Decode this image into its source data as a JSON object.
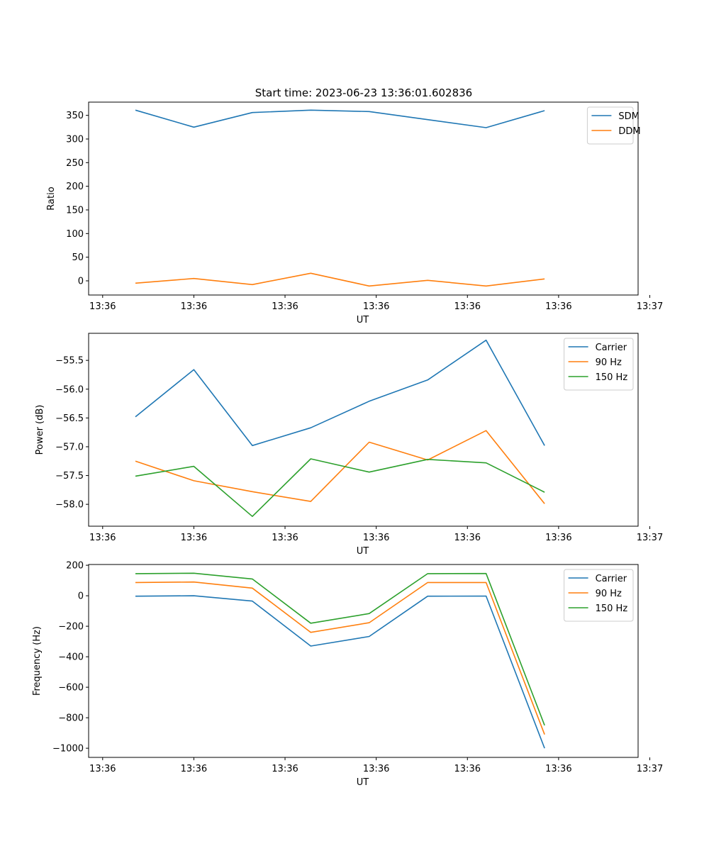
{
  "colors": {
    "blue": "#1f77b4",
    "orange": "#ff7f0e",
    "green": "#2ca02c"
  },
  "figure_title": "Start time: 2023-06-23 13:36:01.602836",
  "x_tick_labels": [
    "13:36",
    "13:36",
    "13:36",
    "13:36",
    "13:36",
    "13:36",
    "13:37"
  ],
  "chart_data": [
    {
      "type": "line",
      "title": "Start time: 2023-06-23 13:36:01.602836",
      "xlabel": "UT",
      "ylabel": "Ratio",
      "x": [
        1,
        2,
        3,
        4,
        5,
        6,
        7,
        8
      ],
      "xlim": [
        0.2,
        9.6
      ],
      "ylim": [
        -30,
        378
      ],
      "yticks": [
        0,
        50,
        100,
        150,
        200,
        250,
        300,
        350
      ],
      "ytick_labels": [
        "0",
        "50",
        "100",
        "150",
        "200",
        "250",
        "300",
        "350"
      ],
      "legend_position": "top-right",
      "grid": false,
      "series": [
        {
          "name": "SDM",
          "color": "#1f77b4",
          "values": [
            361,
            325,
            356,
            361,
            358,
            341,
            324,
            360
          ]
        },
        {
          "name": "DDM",
          "color": "#ff7f0e",
          "values": [
            -5,
            5,
            -8,
            16,
            -11,
            1,
            -11,
            4
          ]
        }
      ]
    },
    {
      "type": "line",
      "xlabel": "UT",
      "ylabel": "Power (dB)",
      "x": [
        1,
        2,
        3,
        4,
        5,
        6,
        7,
        8
      ],
      "xlim": [
        0.2,
        9.6
      ],
      "ylim": [
        -58.38,
        -55.03
      ],
      "yticks": [
        -58.0,
        -57.5,
        -57.0,
        -56.5,
        -56.0,
        -55.5
      ],
      "ytick_labels": [
        "−58.0",
        "−57.5",
        "−57.0",
        "−56.5",
        "−56.0",
        "−55.5"
      ],
      "legend_position": "top-right",
      "grid": false,
      "series": [
        {
          "name": "Carrier",
          "color": "#1f77b4",
          "values": [
            -56.48,
            -55.66,
            -56.98,
            -56.67,
            -56.21,
            -55.84,
            -55.15,
            -56.98
          ]
        },
        {
          "name": "90 Hz",
          "color": "#ff7f0e",
          "values": [
            -57.25,
            -57.59,
            -57.78,
            -57.95,
            -56.92,
            -57.23,
            -56.72,
            -57.99
          ]
        },
        {
          "name": "150 Hz",
          "color": "#2ca02c",
          "values": [
            -57.51,
            -57.34,
            -58.21,
            -57.21,
            -57.44,
            -57.22,
            -57.28,
            -57.79
          ]
        }
      ]
    },
    {
      "type": "line",
      "xlabel": "UT",
      "ylabel": "Frequency (Hz)",
      "x": [
        1,
        2,
        3,
        4,
        5,
        6,
        7,
        8
      ],
      "xlim": [
        0.2,
        9.6
      ],
      "ylim": [
        -1060,
        205
      ],
      "yticks": [
        -1000,
        -800,
        -600,
        -400,
        -200,
        0,
        200
      ],
      "ytick_labels": [
        "−1000",
        "−800",
        "−600",
        "−400",
        "−200",
        "0",
        "200"
      ],
      "legend_position": "top-right",
      "grid": false,
      "series": [
        {
          "name": "Carrier",
          "color": "#1f77b4",
          "values": [
            -3,
            0,
            -35,
            -330,
            -267,
            -3,
            -2,
            -1000
          ]
        },
        {
          "name": "90 Hz",
          "color": "#ff7f0e",
          "values": [
            87,
            90,
            50,
            -240,
            -177,
            87,
            87,
            -910
          ]
        },
        {
          "name": "150 Hz",
          "color": "#2ca02c",
          "values": [
            145,
            148,
            110,
            -180,
            -117,
            145,
            146,
            -850
          ]
        }
      ]
    }
  ]
}
